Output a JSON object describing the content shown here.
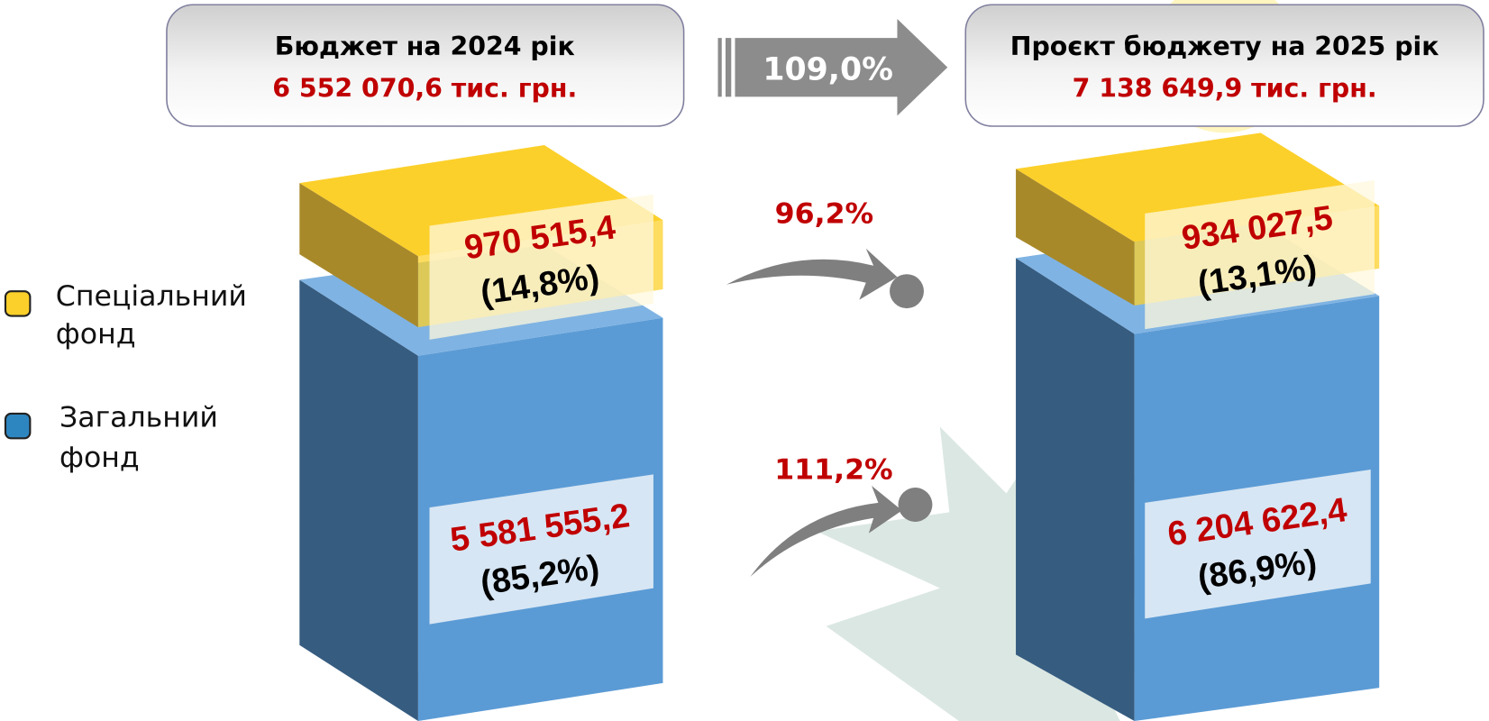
{
  "header": {
    "left": {
      "title": "Бюджет на 2024 рік",
      "amount": "6 552 070,6 тис. грн."
    },
    "change": "109,0%",
    "right": {
      "title": "Проєкт бюджету на 2025 рік",
      "amount": "7 138 649,9 тис. грн."
    }
  },
  "legend": {
    "special": "Спеціальний фонд",
    "general": "Загальний фонд"
  },
  "columns": [
    {
      "special": {
        "amount": "970 515,4",
        "share": "(14,8%)"
      },
      "general": {
        "amount": "5 581 555,2",
        "share": "(85,2%)"
      }
    },
    {
      "special": {
        "amount": "934 027,5",
        "share": "(13,1%)"
      },
      "general": {
        "amount": "6 204 622,4",
        "share": "(86,9%)"
      }
    }
  ],
  "growth": {
    "special": "96,2%",
    "general": "111,2%"
  }
}
